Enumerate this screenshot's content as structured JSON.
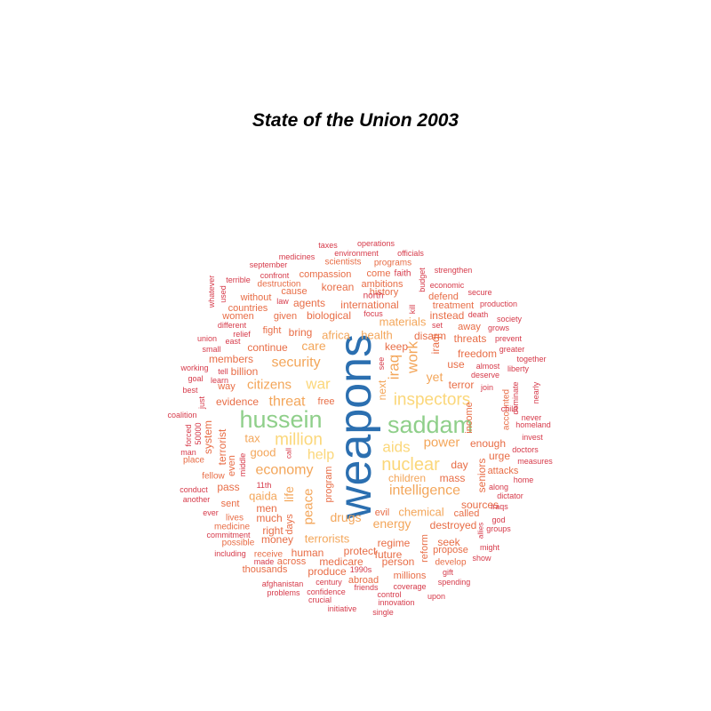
{
  "chart_data": {
    "type": "wordcloud",
    "title": "State of the Union 2003",
    "palette": [
      "#2b6fb0",
      "#8fcf8a",
      "#fbd77a",
      "#f3a65a",
      "#e86d46",
      "#d63a4a"
    ],
    "words": [
      {
        "text": "weapons",
        "freq": 50
      },
      {
        "text": "saddam",
        "freq": 30
      },
      {
        "text": "hussein",
        "freq": 30
      },
      {
        "text": "nuclear",
        "freq": 20
      },
      {
        "text": "inspectors",
        "freq": 18
      },
      {
        "text": "million",
        "freq": 18
      },
      {
        "text": "intelligence",
        "freq": 16
      },
      {
        "text": "aids",
        "freq": 15
      },
      {
        "text": "economy",
        "freq": 15
      },
      {
        "text": "security",
        "freq": 14
      },
      {
        "text": "war",
        "freq": 14
      },
      {
        "text": "work",
        "freq": 14
      },
      {
        "text": "iraq",
        "freq": 14
      },
      {
        "text": "help",
        "freq": 14
      },
      {
        "text": "threat",
        "freq": 13
      },
      {
        "text": "citizens",
        "freq": 13
      },
      {
        "text": "power",
        "freq": 12
      },
      {
        "text": "chemical",
        "freq": 11
      },
      {
        "text": "energy",
        "freq": 11
      },
      {
        "text": "peace",
        "freq": 11
      },
      {
        "text": "life",
        "freq": 11
      },
      {
        "text": "drugs",
        "freq": 11
      },
      {
        "text": "terrorists",
        "freq": 10
      },
      {
        "text": "care",
        "freq": 11
      },
      {
        "text": "health",
        "freq": 11
      },
      {
        "text": "good",
        "freq": 11
      },
      {
        "text": "yet",
        "freq": 11
      },
      {
        "text": "next",
        "freq": 10
      },
      {
        "text": "materials",
        "freq": 10
      },
      {
        "text": "africa",
        "freq": 10
      },
      {
        "text": "tax",
        "freq": 10
      },
      {
        "text": "qaida",
        "freq": 10
      },
      {
        "text": "children",
        "freq": 10
      },
      {
        "text": "evidence",
        "freq": 10
      },
      {
        "text": "iraqi",
        "freq": 9
      },
      {
        "text": "biological",
        "freq": 9
      },
      {
        "text": "international",
        "freq": 9
      },
      {
        "text": "continue",
        "freq": 9
      },
      {
        "text": "disarm",
        "freq": 9
      },
      {
        "text": "keep",
        "freq": 9
      },
      {
        "text": "destroyed",
        "freq": 9
      },
      {
        "text": "regime",
        "freq": 9
      },
      {
        "text": "day",
        "freq": 9
      },
      {
        "text": "terror",
        "freq": 9
      },
      {
        "text": "urge",
        "freq": 9
      },
      {
        "text": "seniors",
        "freq": 9
      },
      {
        "text": "protect",
        "freq": 9
      },
      {
        "text": "mass",
        "freq": 9
      },
      {
        "text": "sources",
        "freq": 9
      },
      {
        "text": "enough",
        "freq": 9
      },
      {
        "text": "much",
        "freq": 9
      },
      {
        "text": "bring",
        "freq": 9
      },
      {
        "text": "terrorist",
        "freq": 9
      },
      {
        "text": "men",
        "freq": 8
      },
      {
        "text": "human",
        "freq": 8
      },
      {
        "text": "medicare",
        "freq": 8
      },
      {
        "text": "freedom",
        "freq": 8
      },
      {
        "text": "use",
        "freq": 8
      },
      {
        "text": "threats",
        "freq": 8
      },
      {
        "text": "instead",
        "freq": 8
      },
      {
        "text": "seek",
        "freq": 8
      },
      {
        "text": "person",
        "freq": 8
      },
      {
        "text": "future",
        "freq": 8
      },
      {
        "text": "produce",
        "freq": 8
      },
      {
        "text": "reform",
        "freq": 8
      },
      {
        "text": "right",
        "freq": 8
      },
      {
        "text": "money",
        "freq": 8
      },
      {
        "text": "pass",
        "freq": 8
      },
      {
        "text": "agents",
        "freq": 8
      },
      {
        "text": "korean",
        "freq": 8
      },
      {
        "text": "members",
        "freq": 8
      },
      {
        "text": "billion",
        "freq": 8
      },
      {
        "text": "system",
        "freq": 8
      },
      {
        "text": "days",
        "freq": 8
      },
      {
        "text": "given",
        "freq": 8
      },
      {
        "text": "history",
        "freq": 8
      },
      {
        "text": "income",
        "freq": 8
      },
      {
        "text": "free",
        "freq": 8
      },
      {
        "text": "treatment",
        "freq": 7
      },
      {
        "text": "away",
        "freq": 7
      },
      {
        "text": "fight",
        "freq": 7
      },
      {
        "text": "called",
        "freq": 7
      },
      {
        "text": "propose",
        "freq": 7
      },
      {
        "text": "millions",
        "freq": 7
      },
      {
        "text": "across",
        "freq": 7
      },
      {
        "text": "even",
        "freq": 7
      },
      {
        "text": "sent",
        "freq": 7
      },
      {
        "text": "attacks",
        "freq": 7
      },
      {
        "text": "program",
        "freq": 7
      },
      {
        "text": "abroad",
        "freq": 7
      },
      {
        "text": "evil",
        "freq": 7
      },
      {
        "text": "way",
        "freq": 7
      },
      {
        "text": "accounted",
        "freq": 7
      },
      {
        "text": "compassion",
        "freq": 7
      },
      {
        "text": "come",
        "freq": 7
      },
      {
        "text": "defend",
        "freq": 7
      },
      {
        "text": "cause",
        "freq": 7
      },
      {
        "text": "countries",
        "freq": 7
      },
      {
        "text": "without",
        "freq": 7
      },
      {
        "text": "women",
        "freq": 7
      },
      {
        "text": "ambitions",
        "freq": 7
      },
      {
        "text": "thousands",
        "freq": 7
      },
      {
        "text": "develop",
        "freq": 7
      },
      {
        "text": "scientists",
        "freq": 7
      },
      {
        "text": "programs",
        "freq": 7
      },
      {
        "text": "destruction",
        "freq": 7
      },
      {
        "text": "fellow",
        "freq": 7
      },
      {
        "text": "place",
        "freq": 7
      },
      {
        "text": "lives",
        "freq": 7
      },
      {
        "text": "receive",
        "freq": 7
      },
      {
        "text": "possible",
        "freq": 7
      },
      {
        "text": "medicine",
        "freq": 7
      },
      {
        "text": "north",
        "freq": 6
      },
      {
        "text": "faith",
        "freq": 6
      },
      {
        "text": "budget",
        "freq": 6
      },
      {
        "text": "september",
        "freq": 6
      },
      {
        "text": "terrible",
        "freq": 6
      },
      {
        "text": "confront",
        "freq": 6
      },
      {
        "text": "law",
        "freq": 6
      },
      {
        "text": "environment",
        "freq": 6
      },
      {
        "text": "officials",
        "freq": 6
      },
      {
        "text": "medicines",
        "freq": 6
      },
      {
        "text": "strengthen",
        "freq": 6
      },
      {
        "text": "economic",
        "freq": 6
      },
      {
        "text": "secure",
        "freq": 6
      },
      {
        "text": "production",
        "freq": 6
      },
      {
        "text": "death",
        "freq": 6
      },
      {
        "text": "society",
        "freq": 6
      },
      {
        "text": "grows",
        "freq": 6
      },
      {
        "text": "prevent",
        "freq": 6
      },
      {
        "text": "greater",
        "freq": 6
      },
      {
        "text": "together",
        "freq": 6
      },
      {
        "text": "liberty",
        "freq": 6
      },
      {
        "text": "almost",
        "freq": 6
      },
      {
        "text": "deserve",
        "freq": 6
      },
      {
        "text": "join",
        "freq": 6
      },
      {
        "text": "dominate",
        "freq": 6
      },
      {
        "text": "nearly",
        "freq": 6
      },
      {
        "text": "child",
        "freq": 6
      },
      {
        "text": "never",
        "freq": 6
      },
      {
        "text": "homeland",
        "freq": 6
      },
      {
        "text": "invest",
        "freq": 6
      },
      {
        "text": "doctors",
        "freq": 6
      },
      {
        "text": "measures",
        "freq": 6
      },
      {
        "text": "home",
        "freq": 6
      },
      {
        "text": "along",
        "freq": 6
      },
      {
        "text": "dictator",
        "freq": 6
      },
      {
        "text": "iraqs",
        "freq": 6
      },
      {
        "text": "god",
        "freq": 6
      },
      {
        "text": "groups",
        "freq": 6
      },
      {
        "text": "allies",
        "freq": 6
      },
      {
        "text": "might",
        "freq": 6
      },
      {
        "text": "show",
        "freq": 6
      },
      {
        "text": "gift",
        "freq": 6
      },
      {
        "text": "spending",
        "freq": 6
      },
      {
        "text": "upon",
        "freq": 6
      },
      {
        "text": "coverage",
        "freq": 6
      },
      {
        "text": "control",
        "freq": 6
      },
      {
        "text": "innovation",
        "freq": 6
      },
      {
        "text": "single",
        "freq": 6
      },
      {
        "text": "initiative",
        "freq": 6
      },
      {
        "text": "crucial",
        "freq": 6
      },
      {
        "text": "confidence",
        "freq": 6
      },
      {
        "text": "century",
        "freq": 6
      },
      {
        "text": "friends",
        "freq": 6
      },
      {
        "text": "1990s",
        "freq": 6
      },
      {
        "text": "problems",
        "freq": 6
      },
      {
        "text": "afghanistan",
        "freq": 6
      },
      {
        "text": "made",
        "freq": 6
      },
      {
        "text": "including",
        "freq": 6
      },
      {
        "text": "commitment",
        "freq": 6
      },
      {
        "text": "ever",
        "freq": 6
      },
      {
        "text": "another",
        "freq": 6
      },
      {
        "text": "conduct",
        "freq": 6
      },
      {
        "text": "11th",
        "freq": 6
      },
      {
        "text": "middle",
        "freq": 6
      },
      {
        "text": "man",
        "freq": 6
      },
      {
        "text": "forced",
        "freq": 6
      },
      {
        "text": "50000",
        "freq": 6
      },
      {
        "text": "coalition",
        "freq": 6
      },
      {
        "text": "just",
        "freq": 6
      },
      {
        "text": "best",
        "freq": 6
      },
      {
        "text": "goal",
        "freq": 6
      },
      {
        "text": "working",
        "freq": 6
      },
      {
        "text": "tell",
        "freq": 6
      },
      {
        "text": "learn",
        "freq": 6
      },
      {
        "text": "small",
        "freq": 6
      },
      {
        "text": "union",
        "freq": 6
      },
      {
        "text": "east",
        "freq": 6
      },
      {
        "text": "relief",
        "freq": 6
      },
      {
        "text": "different",
        "freq": 6
      },
      {
        "text": "used",
        "freq": 6
      },
      {
        "text": "whatever",
        "freq": 6
      },
      {
        "text": "taxes",
        "freq": 6
      },
      {
        "text": "operations",
        "freq": 6
      },
      {
        "text": "focus",
        "freq": 6
      },
      {
        "text": "kill",
        "freq": 6
      },
      {
        "text": "set",
        "freq": 6
      },
      {
        "text": "see",
        "freq": 6
      },
      {
        "text": "call",
        "freq": 6
      }
    ]
  }
}
